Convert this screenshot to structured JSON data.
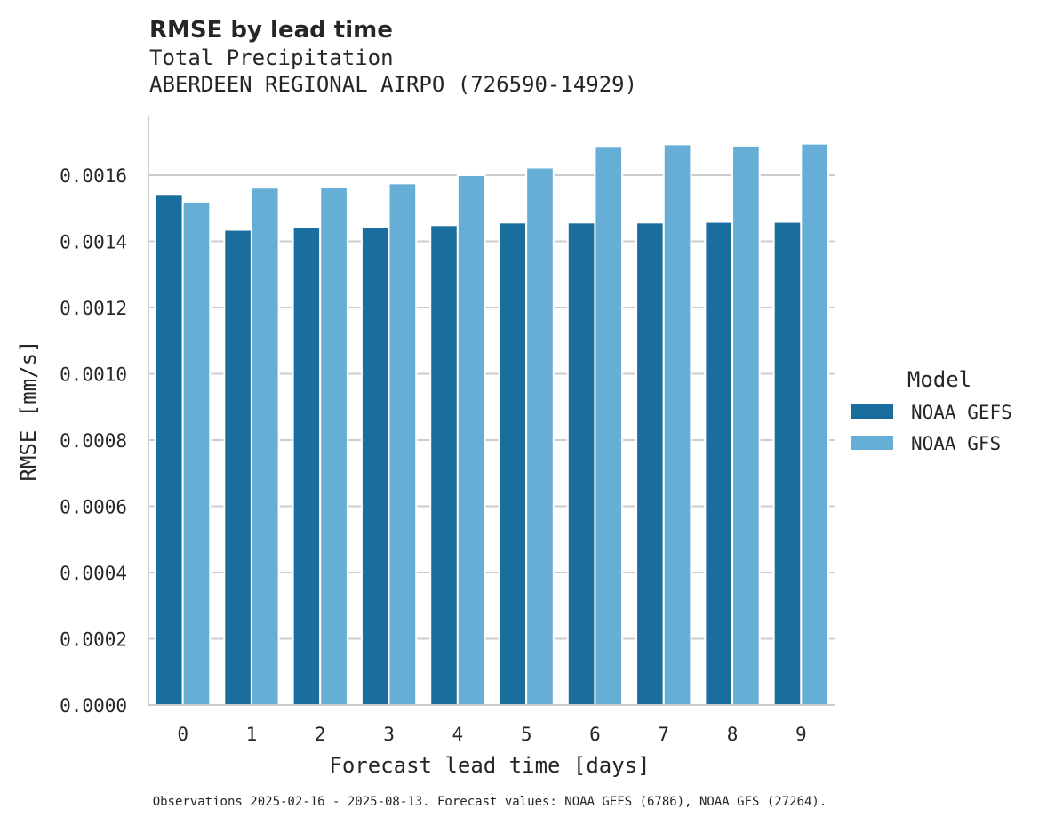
{
  "chart_data": {
    "type": "bar",
    "title": "RMSE by lead time",
    "subtitle_line1": "Total Precipitation",
    "subtitle_line2": "ABERDEEN REGIONAL AIRPO (726590-14929)",
    "xlabel": "Forecast lead time [days]",
    "ylabel": "RMSE [mm/s]",
    "categories": [
      "0",
      "1",
      "2",
      "3",
      "4",
      "5",
      "6",
      "7",
      "8",
      "9"
    ],
    "ylim": [
      0,
      0.00178
    ],
    "yticks": [
      0.0,
      0.0002,
      0.0004,
      0.0006,
      0.0008,
      0.001,
      0.0012,
      0.0014,
      0.0016
    ],
    "ytick_labels": [
      "0.0000",
      "0.0002",
      "0.0004",
      "0.0006",
      "0.0008",
      "0.0010",
      "0.0012",
      "0.0014",
      "0.0016"
    ],
    "grid": true,
    "legend": {
      "title": "Model",
      "placement": "center-right"
    },
    "series": [
      {
        "name": "NOAA GEFS",
        "color": "#1a6e9e",
        "values": [
          0.001543,
          0.001435,
          0.001443,
          0.001443,
          0.001449,
          0.001457,
          0.001457,
          0.001457,
          0.001459,
          0.001459
        ]
      },
      {
        "name": "NOAA GFS",
        "color": "#67aed6",
        "values": [
          0.00152,
          0.001562,
          0.001565,
          0.001575,
          0.0016,
          0.001623,
          0.001688,
          0.001693,
          0.001689,
          0.001695
        ]
      }
    ],
    "footer": "Observations 2025-02-16 - 2025-08-13. Forecast values: NOAA GEFS (6786), NOAA GFS (27264)."
  }
}
